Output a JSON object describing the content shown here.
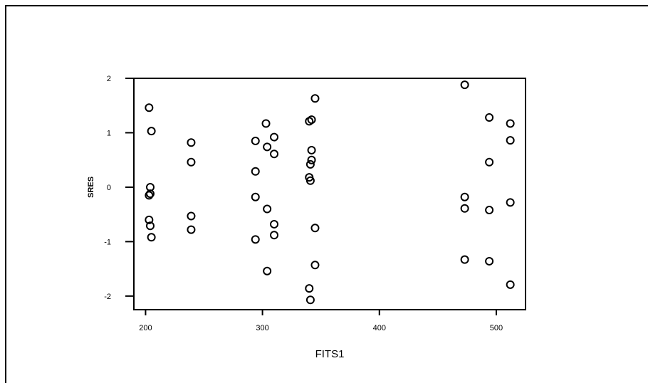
{
  "chart_data": {
    "type": "scatter",
    "title": "",
    "xlabel": "FITS1",
    "ylabel": "SRES",
    "xlim": [
      190,
      525
    ],
    "ylim": [
      -2.25,
      2.0
    ],
    "xticks": [
      200,
      300,
      400,
      500
    ],
    "yticks": [
      -2,
      -1,
      0,
      1,
      2
    ],
    "xtick_labels": [
      "200",
      "300",
      "400",
      "500"
    ],
    "ytick_labels": [
      "-2",
      "-1",
      "0",
      "1",
      "2"
    ],
    "grid": false,
    "marker": "open-circle",
    "colors": {
      "marker": "#000000",
      "axis": "#000000"
    },
    "series": [
      {
        "x": [
          203,
          205,
          204,
          204,
          203,
          203,
          204,
          205,
          239,
          239,
          239,
          239,
          294,
          294,
          294,
          294,
          303,
          304,
          304,
          304,
          310,
          310,
          310,
          310,
          340,
          342,
          342,
          345,
          341,
          340,
          341,
          342,
          345,
          345,
          340,
          341,
          473,
          473,
          473,
          473,
          494,
          494,
          494,
          494,
          512,
          512,
          512,
          512
        ],
        "y": [
          1.46,
          1.03,
          0.0,
          -0.12,
          -0.15,
          -0.6,
          -0.71,
          -0.92,
          0.82,
          0.46,
          -0.53,
          -0.78,
          0.85,
          0.29,
          -0.18,
          -0.96,
          1.17,
          0.74,
          -0.4,
          -1.54,
          0.92,
          0.61,
          -0.68,
          -0.88,
          1.21,
          1.24,
          0.68,
          1.63,
          0.42,
          0.18,
          0.12,
          0.5,
          -0.75,
          -1.43,
          -1.86,
          -2.07,
          1.88,
          -0.18,
          -0.39,
          -1.33,
          1.28,
          0.46,
          -0.42,
          -1.36,
          1.17,
          0.86,
          -0.28,
          -1.79
        ]
      }
    ]
  }
}
